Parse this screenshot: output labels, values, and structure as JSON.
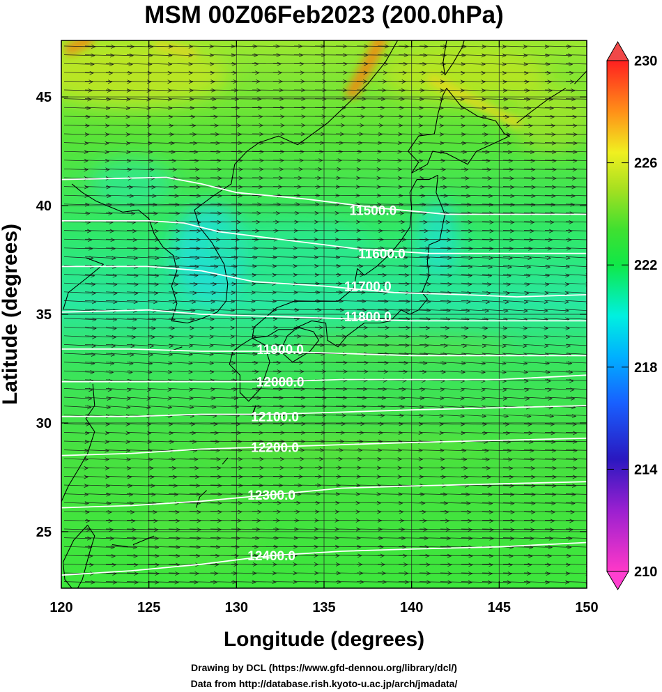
{
  "chart_data": {
    "type": "heatmap",
    "title": "MSM 00Z06Feb2023 (200.0hPa)",
    "xlabel": "Longitude (degrees)",
    "ylabel": "Latitude  (degrees)",
    "xlim": [
      120,
      150
    ],
    "ylim": [
      22.4,
      47.6
    ],
    "x_ticks": [
      "120",
      "125",
      "130",
      "135",
      "140",
      "145",
      "150"
    ],
    "y_ticks": [
      "25",
      "30",
      "35",
      "40",
      "45"
    ],
    "grid": true,
    "colorbar": {
      "placement": "right",
      "range": [
        210,
        230
      ],
      "ticks": [
        "210",
        "214",
        "218",
        "222",
        "226",
        "230"
      ],
      "extend": "both"
    },
    "wind_vectors": true,
    "coastlines": true,
    "contours": [
      {
        "label": "11500.0",
        "value": 11500,
        "label_lon": 137.8,
        "label_lat": 39.8,
        "y_points": [
          [
            120,
            41.2
          ],
          [
            126,
            41.3
          ],
          [
            128,
            41.0
          ],
          [
            130,
            40.6
          ],
          [
            134,
            40.3
          ],
          [
            138,
            39.9
          ],
          [
            142,
            39.6
          ],
          [
            146,
            39.6
          ],
          [
            150,
            39.6
          ]
        ]
      },
      {
        "label": "11600.0",
        "value": 11600,
        "label_lon": 138.3,
        "label_lat": 37.8,
        "y_points": [
          [
            120,
            39.3
          ],
          [
            125,
            39.3
          ],
          [
            127,
            39.2
          ],
          [
            129,
            38.8
          ],
          [
            133,
            38.4
          ],
          [
            137,
            38.0
          ],
          [
            141,
            37.8
          ],
          [
            145,
            37.8
          ],
          [
            150,
            37.8
          ]
        ]
      },
      {
        "label": "11700.0",
        "value": 11700,
        "label_lon": 137.5,
        "label_lat": 36.3,
        "y_points": [
          [
            120,
            37.2
          ],
          [
            125,
            37.2
          ],
          [
            128,
            37.0
          ],
          [
            131,
            36.5
          ],
          [
            135,
            36.3
          ],
          [
            139,
            36.0
          ],
          [
            143,
            35.9
          ],
          [
            146,
            35.8
          ],
          [
            150,
            35.9
          ]
        ]
      },
      {
        "label": "11800.0",
        "value": 11800,
        "label_lon": 137.5,
        "label_lat": 34.9,
        "y_points": [
          [
            120,
            35.1
          ],
          [
            125,
            35.2
          ],
          [
            128,
            35.0
          ],
          [
            132,
            34.9
          ],
          [
            136,
            34.8
          ],
          [
            140,
            34.7
          ],
          [
            144,
            34.7
          ],
          [
            150,
            34.7
          ]
        ]
      },
      {
        "label": "11900.0",
        "value": 11900,
        "label_lon": 132.5,
        "label_lat": 33.4,
        "y_points": [
          [
            120,
            33.4
          ],
          [
            124,
            33.4
          ],
          [
            128,
            33.3
          ],
          [
            132,
            33.3
          ],
          [
            136,
            33.2
          ],
          [
            140,
            33.1
          ],
          [
            145,
            33.1
          ],
          [
            150,
            33.1
          ]
        ]
      },
      {
        "label": "12000.0",
        "value": 12000,
        "label_lon": 132.5,
        "label_lat": 31.9,
        "y_points": [
          [
            120,
            31.9
          ],
          [
            124,
            31.9
          ],
          [
            128,
            31.9
          ],
          [
            132,
            31.9
          ],
          [
            136,
            32.0
          ],
          [
            140,
            32.0
          ],
          [
            145,
            32.0
          ],
          [
            150,
            32.2
          ]
        ]
      },
      {
        "label": "12100.0",
        "value": 12100,
        "label_lon": 132.2,
        "label_lat": 30.3,
        "y_points": [
          [
            120,
            30.3
          ],
          [
            124,
            30.3
          ],
          [
            128,
            30.4
          ],
          [
            132,
            30.4
          ],
          [
            136,
            30.5
          ],
          [
            140,
            30.6
          ],
          [
            145,
            30.7
          ],
          [
            150,
            30.8
          ]
        ]
      },
      {
        "label": "12200.0",
        "value": 12200,
        "label_lon": 132.2,
        "label_lat": 28.9,
        "y_points": [
          [
            120,
            28.5
          ],
          [
            124,
            28.6
          ],
          [
            128,
            28.8
          ],
          [
            132,
            28.9
          ],
          [
            136,
            29.0
          ],
          [
            140,
            29.1
          ],
          [
            145,
            29.2
          ],
          [
            150,
            29.3
          ]
        ]
      },
      {
        "label": "12300.0",
        "value": 12300,
        "label_lon": 132.0,
        "label_lat": 26.7,
        "y_points": [
          [
            120,
            26.1
          ],
          [
            124,
            26.2
          ],
          [
            128,
            26.4
          ],
          [
            132,
            26.7
          ],
          [
            136,
            27.0
          ],
          [
            140,
            27.1
          ],
          [
            145,
            27.2
          ],
          [
            150,
            27.3
          ]
        ]
      },
      {
        "label": "12400.0",
        "value": 12400,
        "label_lon": 132.0,
        "label_lat": 23.9,
        "y_points": [
          [
            120,
            23.0
          ],
          [
            124,
            23.2
          ],
          [
            128,
            23.5
          ],
          [
            132,
            23.9
          ],
          [
            136,
            24.1
          ],
          [
            140,
            24.2
          ],
          [
            145,
            24.3
          ],
          [
            150,
            24.5
          ]
        ]
      }
    ]
  },
  "credits": {
    "line1": "Drawing by DCL (https://www.gfd-dennou.org/library/dcl/)",
    "line2": "Data from http://database.rish.kyoto-u.ac.jp/arch/jmadata/"
  },
  "colors": {
    "field_base": "#3ce63c",
    "field_cool": "#28e89a",
    "field_cyan": "#20e0d8",
    "field_warm": "#c6e620",
    "field_hot": "#f08a10",
    "contour": "#ffffff",
    "vector": "#1a1a1a",
    "coast": "#000000"
  }
}
